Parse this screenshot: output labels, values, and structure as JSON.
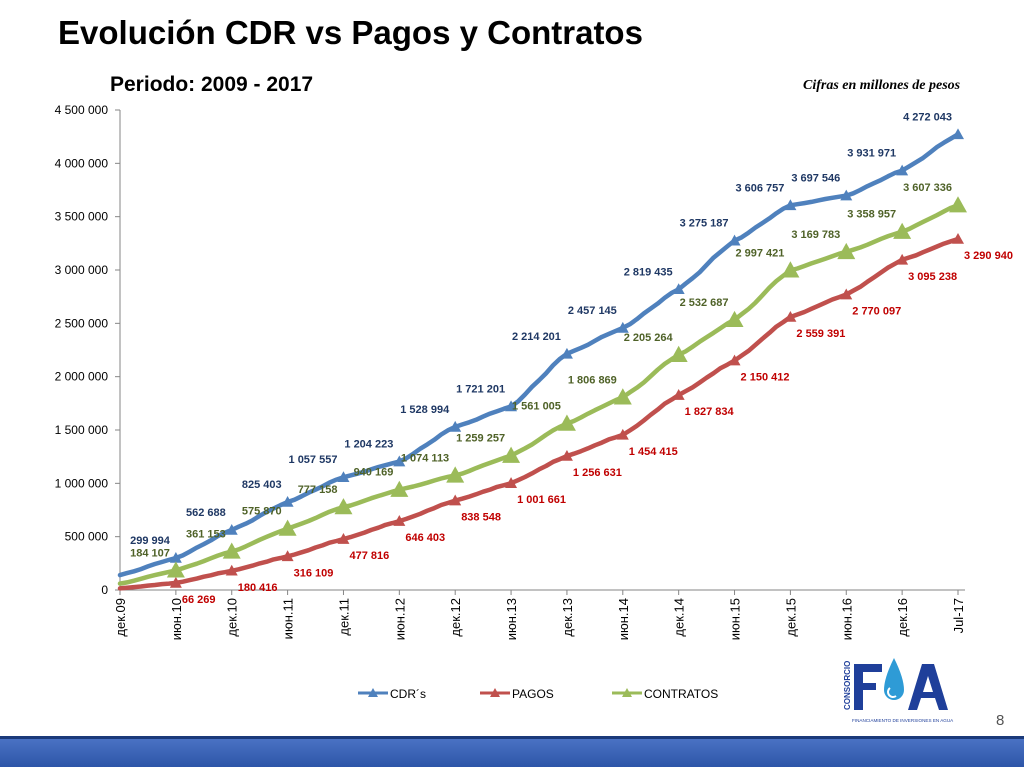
{
  "title": "Evolución CDR vs Pagos y Contratos",
  "subtitle": "Periodo: 2009 - 2017",
  "note": "Cifras en millones de pesos",
  "page_number": "8",
  "logo": {
    "side_text": "CONSORCIO",
    "letters": "FIA",
    "tagline": "FINANCIAMIENTO DE INVERSIONES EN AGUA"
  },
  "colors": {
    "cdr": "#4f81bd",
    "cdr_label": "#1f3864",
    "pagos": "#c0504d",
    "pagos_label": "#c00000",
    "contratos": "#9bbb59",
    "contratos_label": "#4f6228",
    "footer": "#2d55a8"
  },
  "chart_data": {
    "type": "line",
    "title": "",
    "xlabel": "",
    "ylabel": "",
    "ylim": [
      0,
      4500000
    ],
    "yticks": [
      0,
      500000,
      1000000,
      1500000,
      2000000,
      2500000,
      3000000,
      3500000,
      4000000,
      4500000
    ],
    "ytick_labels": [
      "0",
      "500 000",
      "1 000 000",
      "1 500 000",
      "2 000 000",
      "2 500 000",
      "3 000 000",
      "3 500 000",
      "4 000 000",
      "4 500 000"
    ],
    "categories": [
      "дек.09",
      "июн.10",
      "дек.10",
      "июн.11",
      "дек.11",
      "июн.12",
      "дек.12",
      "июн.13",
      "дек.13",
      "июн.14",
      "дек.14",
      "июн.15",
      "дек.15",
      "июн.16",
      "дек.16",
      "Jul-17"
    ],
    "grid": false,
    "legend_position": "bottom",
    "series": [
      {
        "name": "CDR´s",
        "marker_values": [
          299994,
          562688,
          825403,
          1057557,
          1204223,
          1528994,
          1721201,
          2214201,
          2457145,
          2819435,
          3275187,
          3606757,
          3697546,
          3931971,
          4272043
        ],
        "marker_labels": [
          "299 994",
          "562 688",
          "825 403",
          "1 057 557",
          "1 204 223",
          "1 528 994",
          "1 721 201",
          "2 214 201",
          "2 457 145",
          "2 819 435",
          "3 275 187",
          "3 606 757",
          "3 697 546",
          "3 931 971",
          "4 272 043"
        ],
        "start_value": 140000
      },
      {
        "name": "PAGOS",
        "marker_values": [
          66269,
          180416,
          316109,
          477816,
          646403,
          838548,
          1001661,
          1256631,
          1454415,
          1827834,
          2150412,
          2559391,
          2770097,
          3095238,
          3290940
        ],
        "marker_labels": [
          "66 269",
          "180 416",
          "316 109",
          "477 816",
          "646 403",
          "838 548",
          "1 001 661",
          "1 256 631",
          "1 454 415",
          "1 827 834",
          "2 150 412",
          "2 559 391",
          "2 770 097",
          "3 095 238",
          "3 290 940"
        ],
        "start_value": 15000
      },
      {
        "name": "CONTRATOS",
        "marker_values": [
          184107,
          361153,
          575870,
          777158,
          940169,
          1074113,
          1259257,
          1561005,
          1806869,
          2205264,
          2532687,
          2997421,
          3169783,
          3358957,
          3607336
        ],
        "marker_labels": [
          "184 107",
          "361 153",
          "575 870",
          "777 158",
          "940 169",
          "1 074 113",
          "1 259 257",
          "1 561 005",
          "1 806 869",
          "2 205 264",
          "2 532 687",
          "2 997 421",
          "3 169 783",
          "3 358 957",
          "3 607 336"
        ],
        "start_value": 60000
      }
    ]
  }
}
